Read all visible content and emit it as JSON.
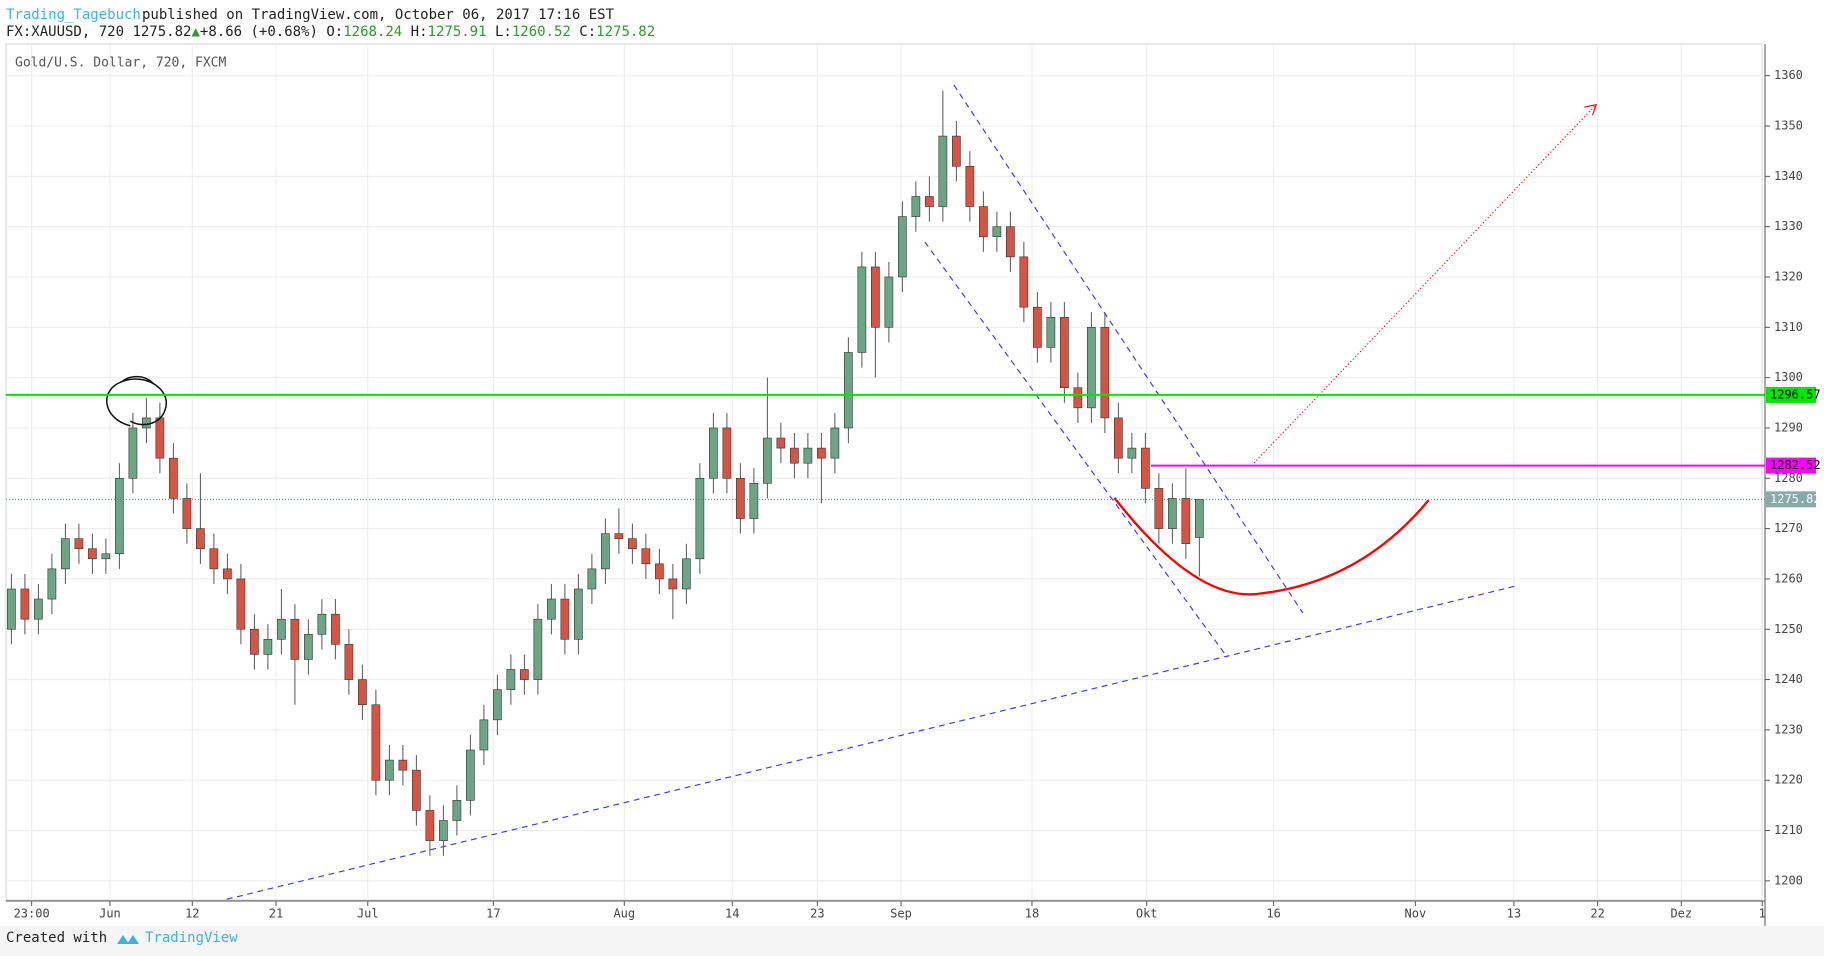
{
  "header": {
    "author": "Trading_Tagebuch",
    "published": "published on TradingView.com, October 06, 2017 17:16 EST",
    "symbol": "FX:XAUUSD, 720",
    "arrow": "▲",
    "change": "+8.66 (+0.68%)",
    "ohlc_labels": [
      "O:",
      "H:",
      "L:",
      "C:"
    ]
  },
  "chart_data": {
    "type": "candlestick",
    "title": "Gold/U.S. Dollar, 720, FXCM",
    "up_color": "#6ba583",
    "down_color": "#d75442",
    "candles": [
      [
        1250,
        1261,
        1247,
        1258
      ],
      [
        1258,
        1261,
        1249,
        1252
      ],
      [
        1252,
        1259,
        1249,
        1256
      ],
      [
        1256,
        1265,
        1253,
        1262
      ],
      [
        1262,
        1271,
        1259,
        1268
      ],
      [
        1268,
        1271,
        1263,
        1266
      ],
      [
        1266,
        1269,
        1261,
        1264
      ],
      [
        1264,
        1268,
        1261,
        1265
      ],
      [
        1265,
        1283,
        1262,
        1280
      ],
      [
        1280,
        1293,
        1277,
        1290
      ],
      [
        1290,
        1296,
        1287,
        1292
      ],
      [
        1292,
        1295,
        1281,
        1284
      ],
      [
        1284,
        1287,
        1273,
        1276
      ],
      [
        1276,
        1279,
        1267,
        1270
      ],
      [
        1270,
        1281,
        1263,
        1266
      ],
      [
        1266,
        1269,
        1259,
        1262
      ],
      [
        1262,
        1265,
        1257,
        1260
      ],
      [
        1260,
        1263,
        1247,
        1250
      ],
      [
        1250,
        1253,
        1242,
        1245
      ],
      [
        1245,
        1251,
        1242,
        1248
      ],
      [
        1248,
        1258,
        1245,
        1252
      ],
      [
        1252,
        1255,
        1235,
        1244
      ],
      [
        1244,
        1252,
        1241,
        1249
      ],
      [
        1249,
        1256,
        1246,
        1253
      ],
      [
        1253,
        1256,
        1244,
        1247
      ],
      [
        1247,
        1250,
        1237,
        1240
      ],
      [
        1240,
        1243,
        1232,
        1235
      ],
      [
        1235,
        1238,
        1217,
        1220
      ],
      [
        1220,
        1227,
        1217,
        1224
      ],
      [
        1224,
        1227,
        1219,
        1222
      ],
      [
        1222,
        1225,
        1211,
        1214
      ],
      [
        1214,
        1217,
        1205,
        1208
      ],
      [
        1208,
        1215,
        1205,
        1212
      ],
      [
        1212,
        1219,
        1209,
        1216
      ],
      [
        1216,
        1229,
        1213,
        1226
      ],
      [
        1226,
        1235,
        1223,
        1232
      ],
      [
        1232,
        1241,
        1229,
        1238
      ],
      [
        1238,
        1245,
        1235,
        1242
      ],
      [
        1242,
        1245,
        1237,
        1240
      ],
      [
        1240,
        1255,
        1237,
        1252
      ],
      [
        1252,
        1259,
        1249,
        1256
      ],
      [
        1256,
        1259,
        1245,
        1248
      ],
      [
        1248,
        1261,
        1245,
        1258
      ],
      [
        1258,
        1265,
        1255,
        1262
      ],
      [
        1262,
        1272,
        1259,
        1269
      ],
      [
        1269,
        1274,
        1265,
        1268
      ],
      [
        1268,
        1271,
        1263,
        1266
      ],
      [
        1266,
        1269,
        1260,
        1263
      ],
      [
        1263,
        1266,
        1257,
        1260
      ],
      [
        1260,
        1263,
        1252,
        1258
      ],
      [
        1258,
        1267,
        1255,
        1264
      ],
      [
        1264,
        1283,
        1261,
        1280
      ],
      [
        1280,
        1293,
        1277,
        1290
      ],
      [
        1290,
        1293,
        1277,
        1280
      ],
      [
        1280,
        1283,
        1269,
        1272
      ],
      [
        1272,
        1282,
        1269,
        1279
      ],
      [
        1279,
        1300,
        1276,
        1288
      ],
      [
        1288,
        1291,
        1283,
        1286
      ],
      [
        1286,
        1289,
        1280,
        1283
      ],
      [
        1283,
        1289,
        1280,
        1286
      ],
      [
        1286,
        1289,
        1275,
        1284
      ],
      [
        1284,
        1293,
        1281,
        1290
      ],
      [
        1290,
        1308,
        1287,
        1305
      ],
      [
        1305,
        1325,
        1302,
        1322
      ],
      [
        1322,
        1325,
        1300,
        1310
      ],
      [
        1310,
        1323,
        1307,
        1320
      ],
      [
        1320,
        1335,
        1317,
        1332
      ],
      [
        1332,
        1339,
        1329,
        1336
      ],
      [
        1336,
        1340,
        1331,
        1334
      ],
      [
        1334,
        1357,
        1331,
        1348
      ],
      [
        1348,
        1351,
        1339,
        1342
      ],
      [
        1342,
        1345,
        1331,
        1334
      ],
      [
        1334,
        1337,
        1325,
        1328
      ],
      [
        1328,
        1333,
        1325,
        1330
      ],
      [
        1330,
        1333,
        1321,
        1324
      ],
      [
        1324,
        1327,
        1311,
        1314
      ],
      [
        1314,
        1317,
        1303,
        1306
      ],
      [
        1306,
        1315,
        1303,
        1312
      ],
      [
        1312,
        1315,
        1295,
        1298
      ],
      [
        1298,
        1301,
        1291,
        1294
      ],
      [
        1294,
        1313,
        1291,
        1310
      ],
      [
        1310,
        1313,
        1289,
        1292
      ],
      [
        1292,
        1295,
        1281,
        1284
      ],
      [
        1284,
        1289,
        1281,
        1286
      ],
      [
        1286,
        1289,
        1275,
        1278
      ],
      [
        1278,
        1281,
        1267,
        1270
      ],
      [
        1270,
        1279,
        1267,
        1276
      ],
      [
        1276,
        1282,
        1264,
        1267
      ],
      [
        1268.24,
        1275.91,
        1260.52,
        1275.82
      ]
    ],
    "xlim": [
      -0.4,
      129.9
    ],
    "xticks": [
      {
        "value": 1.5,
        "label": "23:00"
      },
      {
        "value": 7.3,
        "label": "Jun"
      },
      {
        "value": 13.4,
        "label": "12"
      },
      {
        "value": 19.6,
        "label": "21"
      },
      {
        "value": 26.4,
        "label": "Jul"
      },
      {
        "value": 35.7,
        "label": "17"
      },
      {
        "value": 45.4,
        "label": "Aug"
      },
      {
        "value": 53.4,
        "label": "14"
      },
      {
        "value": 59.7,
        "label": "23"
      },
      {
        "value": 65.9,
        "label": "Sep"
      },
      {
        "value": 75.6,
        "label": "18"
      },
      {
        "value": 84.1,
        "label": "Okt"
      },
      {
        "value": 93.5,
        "label": "16"
      },
      {
        "value": 104,
        "label": "Nov"
      },
      {
        "value": 111.3,
        "label": "13"
      },
      {
        "value": 117.5,
        "label": "22"
      },
      {
        "value": 123.7,
        "label": "Dez"
      },
      {
        "value": 129.7,
        "label": "1"
      }
    ],
    "ylim": [
      1196,
      1366.3
    ],
    "yticks": [
      1200,
      1210,
      1220,
      1230,
      1240,
      1250,
      1260,
      1270,
      1280,
      1290,
      1300,
      1310,
      1320,
      1330,
      1340,
      1350,
      1360
    ],
    "grid": true,
    "levels": [
      {
        "value": 1296.57,
        "color": "#00e600"
      },
      {
        "value": 1282.52,
        "color": "#ff00ff"
      }
    ]
  },
  "footer": {
    "text": "Created with",
    "brand": "TradingView"
  }
}
